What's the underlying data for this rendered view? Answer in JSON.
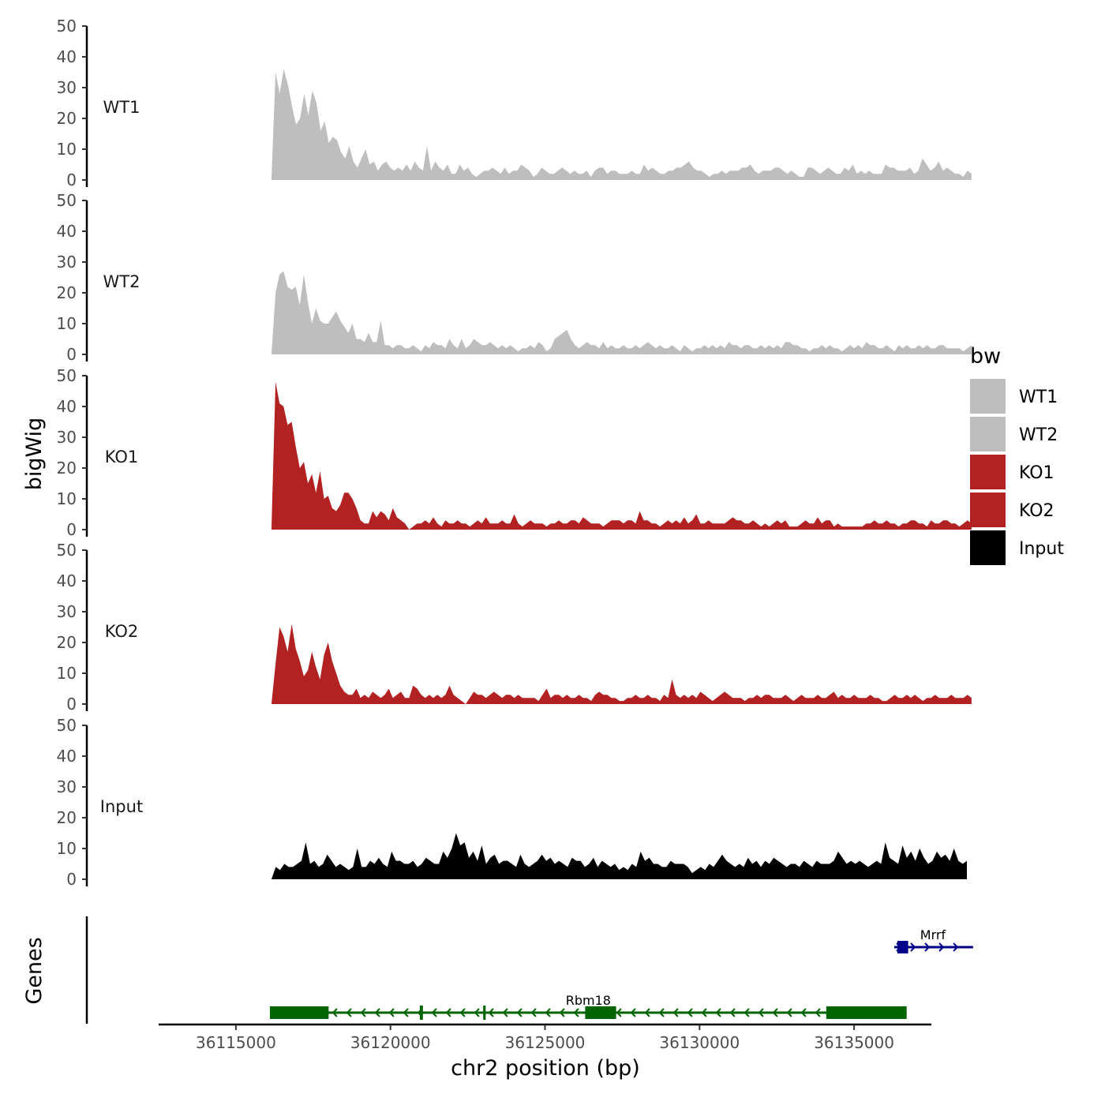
{
  "chart_data": {
    "type": "area",
    "title": "",
    "xlabel": "chr2 position (bp)",
    "ylabel": "bigWig",
    "genes_label": "Genes",
    "xlim": [
      36112500,
      36137500
    ],
    "ylim": [
      0,
      50
    ],
    "x_ticks": [
      36115000,
      36120000,
      36125000,
      36130000,
      36135000
    ],
    "x_tick_labels": [
      "36115000",
      "36120000",
      "36125000",
      "36130000",
      "36135000"
    ],
    "y_ticks": [
      0,
      10,
      20,
      30,
      40,
      50
    ],
    "y_tick_labels": [
      "0",
      "10",
      "20",
      "30",
      "40",
      "50"
    ],
    "legend": {
      "title": "bw",
      "position": "right",
      "entries": [
        {
          "label": "WT1",
          "color": "#bebebe"
        },
        {
          "label": "WT2",
          "color": "#bebebe"
        },
        {
          "label": "KO1",
          "color": "#b22222"
        },
        {
          "label": "KO2",
          "color": "#b22222"
        },
        {
          "label": "Input",
          "color": "#000000"
        }
      ]
    },
    "series": [
      {
        "name": "WT1",
        "color": "#bebebe",
        "x_start": 36116150,
        "x_end": 36138800,
        "values": [
          0,
          35,
          28,
          36,
          31,
          24,
          18,
          20,
          28,
          21,
          29,
          25,
          16,
          19,
          12,
          14,
          13,
          9,
          7,
          11,
          6,
          4,
          7,
          10,
          5,
          6,
          3,
          5,
          6,
          4,
          3,
          4,
          3,
          5,
          3,
          6,
          4,
          3,
          11,
          3,
          6,
          4,
          3,
          5,
          2,
          2,
          5,
          3,
          4,
          2,
          1,
          2,
          3,
          3,
          4,
          3,
          2,
          4,
          2,
          3,
          3,
          5,
          4,
          3,
          1,
          2,
          4,
          3,
          2,
          2,
          3,
          4,
          3,
          2,
          3,
          2,
          2,
          3,
          1,
          3,
          4,
          4,
          2,
          3,
          3,
          2,
          2,
          2,
          3,
          2,
          2,
          5,
          3,
          4,
          3,
          2,
          2,
          3,
          3,
          4,
          4,
          5,
          6,
          4,
          3,
          3,
          2,
          1,
          2,
          2,
          3,
          2,
          3,
          3,
          3,
          4,
          4,
          5,
          3,
          2,
          3,
          3,
          3,
          4,
          4,
          3,
          2,
          3,
          2,
          1,
          1,
          4,
          4,
          3,
          2,
          3,
          4,
          3,
          2,
          2,
          4,
          3,
          5,
          2,
          3,
          2,
          3,
          2,
          2,
          2,
          5,
          4,
          4,
          3,
          3,
          3,
          4,
          2,
          3,
          7,
          5,
          3,
          4,
          6,
          3,
          4,
          3,
          2,
          2,
          1,
          3,
          2
        ]
      },
      {
        "name": "WT2",
        "color": "#bebebe",
        "x_start": 36116150,
        "x_end": 36138800,
        "values": [
          0,
          20,
          26,
          27,
          22,
          21,
          22,
          16,
          26,
          17,
          10,
          15,
          11,
          10,
          10,
          12,
          14,
          11,
          9,
          7,
          10,
          5,
          5,
          4,
          7,
          4,
          4,
          11,
          3,
          3,
          2,
          3,
          3,
          2,
          2,
          3,
          2,
          1,
          3,
          2,
          4,
          3,
          3,
          2,
          5,
          3,
          2,
          5,
          2,
          3,
          5,
          4,
          3,
          3,
          4,
          3,
          2,
          3,
          2,
          3,
          2,
          1,
          2,
          2,
          3,
          2,
          4,
          3,
          1,
          2,
          5,
          6,
          7,
          8,
          5,
          3,
          2,
          3,
          4,
          3,
          3,
          2,
          4,
          2,
          3,
          2,
          2,
          3,
          2,
          2,
          3,
          2,
          3,
          4,
          3,
          2,
          3,
          2,
          2,
          3,
          2,
          1,
          3,
          2,
          1,
          2,
          2,
          3,
          2,
          3,
          2,
          3,
          2,
          4,
          3,
          3,
          2,
          3,
          3,
          2,
          2,
          3,
          2,
          3,
          2,
          3,
          2,
          4,
          4,
          3,
          3,
          2,
          2,
          1,
          2,
          2,
          3,
          2,
          3,
          2,
          2,
          1,
          2,
          3,
          2,
          3,
          2,
          4,
          3,
          3,
          2,
          2,
          3,
          2,
          1,
          3,
          2,
          3,
          2,
          2,
          3,
          2,
          3,
          2,
          2,
          3,
          3,
          2,
          2,
          2,
          2,
          1,
          2,
          3
        ]
      },
      {
        "name": "KO1",
        "color": "#b22222",
        "x_start": 36116150,
        "x_end": 36138800,
        "values": [
          0,
          48,
          41,
          40,
          34,
          35,
          27,
          20,
          22,
          15,
          18,
          12,
          19,
          10,
          11,
          7,
          6,
          8,
          12,
          12,
          10,
          7,
          3,
          2,
          2,
          6,
          4,
          6,
          5,
          3,
          7,
          4,
          3,
          2,
          0,
          1,
          2,
          2,
          3,
          2,
          4,
          2,
          1,
          3,
          2,
          2,
          3,
          2,
          2,
          1,
          2,
          3,
          2,
          4,
          2,
          2,
          2,
          3,
          2,
          2,
          5,
          2,
          1,
          2,
          3,
          2,
          2,
          2,
          1,
          2,
          2,
          3,
          2,
          2,
          3,
          3,
          2,
          4,
          3,
          2,
          2,
          2,
          1,
          2,
          3,
          3,
          3,
          2,
          3,
          3,
          2,
          6,
          3,
          3,
          2,
          2,
          1,
          2,
          3,
          2,
          3,
          2,
          4,
          2,
          3,
          5,
          2,
          2,
          3,
          2,
          2,
          2,
          2,
          3,
          4,
          3,
          3,
          2,
          2,
          3,
          2,
          1,
          2,
          1,
          2,
          3,
          2,
          3,
          1,
          1,
          1,
          2,
          3,
          2,
          2,
          4,
          2,
          3,
          3,
          1,
          2,
          1,
          1,
          1,
          1,
          1,
          1,
          2,
          2,
          3,
          2,
          2,
          3,
          2,
          2,
          1,
          2,
          2,
          3,
          3,
          2,
          2,
          1,
          3,
          2,
          2,
          3,
          3,
          2,
          2,
          1,
          2,
          3,
          2
        ]
      },
      {
        "name": "KO2",
        "color": "#b22222",
        "x_start": 36116150,
        "x_end": 36138800,
        "values": [
          0,
          13,
          25,
          22,
          17,
          26,
          18,
          14,
          9,
          11,
          17,
          12,
          8,
          16,
          20,
          14,
          10,
          6,
          4,
          3,
          3,
          5,
          2,
          3,
          2,
          4,
          3,
          2,
          3,
          5,
          2,
          3,
          4,
          2,
          2,
          6,
          5,
          3,
          2,
          3,
          2,
          3,
          2,
          3,
          6,
          3,
          2,
          1,
          0,
          2,
          4,
          3,
          3,
          2,
          3,
          4,
          3,
          2,
          3,
          3,
          2,
          3,
          2,
          2,
          2,
          2,
          1,
          3,
          5,
          2,
          3,
          3,
          2,
          3,
          2,
          2,
          3,
          2,
          2,
          1,
          3,
          4,
          3,
          3,
          2,
          2,
          1,
          1,
          2,
          2,
          3,
          2,
          2,
          3,
          2,
          2,
          1,
          3,
          2,
          8,
          3,
          2,
          3,
          2,
          3,
          2,
          4,
          3,
          2,
          1,
          2,
          3,
          4,
          3,
          2,
          2,
          2,
          1,
          2,
          2,
          3,
          2,
          3,
          3,
          2,
          2,
          2,
          3,
          2,
          1,
          2,
          3,
          2,
          2,
          2,
          3,
          2,
          2,
          3,
          4,
          2,
          3,
          2,
          2,
          3,
          2,
          2,
          2,
          3,
          2,
          2,
          1,
          1,
          2,
          3,
          2,
          2,
          3,
          2,
          3,
          2,
          1,
          2,
          2,
          3,
          2,
          2,
          2,
          3,
          2,
          2,
          2,
          3,
          2
        ]
      },
      {
        "name": "Input",
        "color": "#000000",
        "x_start": 36116150,
        "x_end": 36138650,
        "values": [
          0,
          4,
          3,
          5,
          4,
          4,
          5,
          6,
          12,
          5,
          6,
          4,
          5,
          8,
          6,
          4,
          5,
          4,
          3,
          4,
          10,
          4,
          4,
          6,
          5,
          7,
          5,
          4,
          9,
          6,
          6,
          5,
          5,
          6,
          4,
          5,
          7,
          6,
          5,
          5,
          9,
          7,
          10,
          15,
          11,
          12,
          7,
          9,
          6,
          11,
          5,
          7,
          8,
          5,
          6,
          6,
          5,
          4,
          8,
          5,
          4,
          5,
          6,
          8,
          6,
          7,
          5,
          6,
          5,
          4,
          7,
          6,
          6,
          4,
          5,
          7,
          4,
          6,
          5,
          4,
          5,
          3,
          4,
          3,
          5,
          4,
          9,
          6,
          7,
          5,
          5,
          4,
          4,
          6,
          5,
          5,
          5,
          4,
          2,
          3,
          4,
          3,
          5,
          4,
          6,
          8,
          6,
          5,
          4,
          5,
          4,
          7,
          5,
          6,
          4,
          6,
          5,
          7,
          6,
          5,
          4,
          5,
          5,
          4,
          6,
          5,
          4,
          6,
          5,
          5,
          5,
          6,
          9,
          7,
          5,
          6,
          5,
          6,
          5,
          4,
          5,
          6,
          5,
          12,
          7,
          6,
          5,
          11,
          7,
          9,
          6,
          10,
          7,
          5,
          6,
          9,
          7,
          8,
          6,
          10,
          6,
          5,
          6
        ]
      }
    ],
    "genes": [
      {
        "name": "Rbm18",
        "strand": "-",
        "color": "#006400",
        "start": 36116100,
        "end": 36136700,
        "exons": [
          [
            36116100,
            36118000
          ],
          [
            36120950,
            36121050
          ],
          [
            36123000,
            36123080
          ],
          [
            36126300,
            36127300
          ],
          [
            36134100,
            36136700
          ]
        ]
      },
      {
        "name": "Mrrf",
        "strand": "+",
        "color": "#00008b",
        "start": 36136300,
        "end": 36138850,
        "exons": [
          [
            36136400,
            36136750
          ]
        ]
      }
    ]
  }
}
